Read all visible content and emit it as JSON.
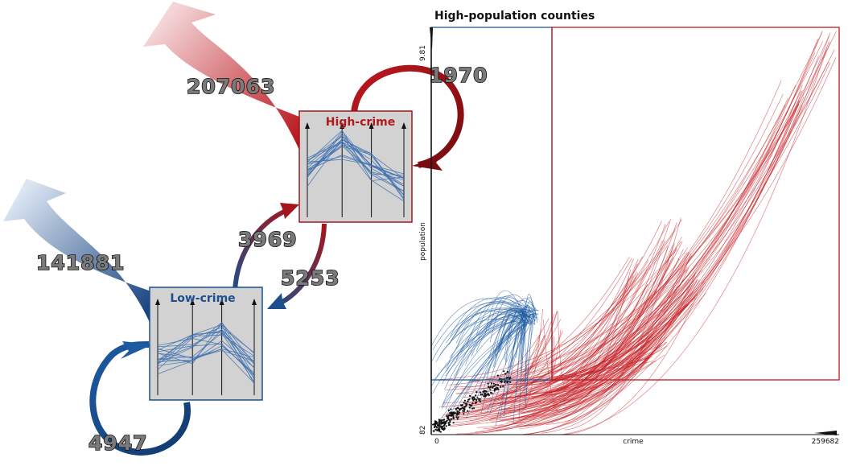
{
  "nodes": {
    "high": {
      "title": "High-crime",
      "color": "#b01a1e"
    },
    "low": {
      "title": "Low-crime",
      "color": "#1c4f8c"
    }
  },
  "flows": {
    "high_exit": "207063",
    "high_self": "1970",
    "low_to_high": "3969",
    "high_to_low": "5253",
    "low_exit": "141881",
    "low_self": "4947"
  },
  "scatter": {
    "title": "High-population counties",
    "x_label": "crime",
    "y_label": "population",
    "x_min": "0",
    "x_max": "259682",
    "y_min": "82",
    "y_max": "9.81"
  },
  "colors": {
    "red": "#c41a1f",
    "blue": "#1c5aa0",
    "node_bg": "#d2d2d2"
  }
}
